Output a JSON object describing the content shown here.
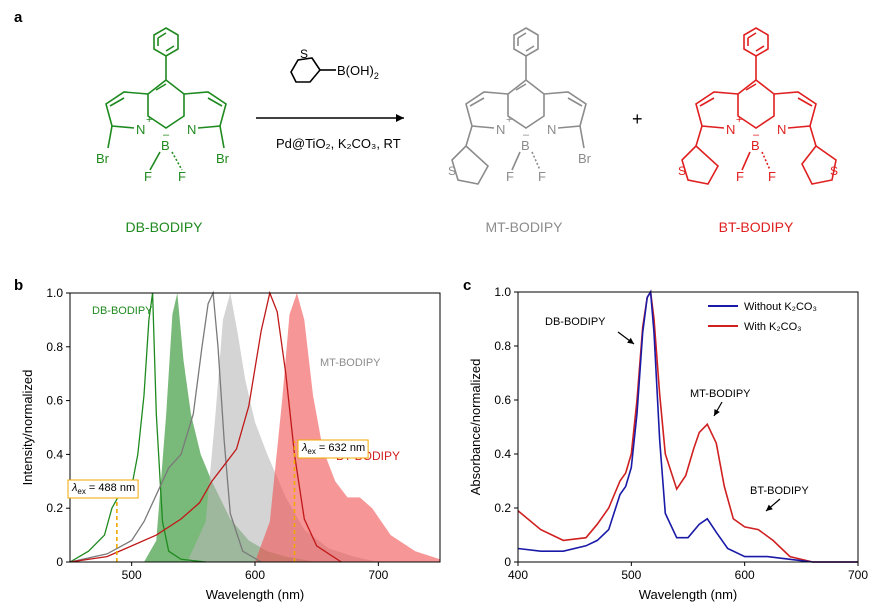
{
  "panel_labels": {
    "a": "a",
    "b": "b",
    "c": "c"
  },
  "scheme": {
    "reagent": "B(OH)",
    "reagent_sub": "2",
    "conditions": "Pd@TiO₂, K₂CO₃, RT",
    "plus": "+",
    "atoms": {
      "N": "N",
      "B": "B",
      "F": "F",
      "Br": "Br",
      "S": "S",
      "plus_charge": "+",
      "minus_charge": "–"
    },
    "compounds": [
      {
        "name": "DB-BODIPY",
        "color": "#1f8a1f"
      },
      {
        "name": "MT-BODIPY",
        "color": "#8c8c8c"
      },
      {
        "name": "BT-BODIPY",
        "color": "#e02020"
      }
    ]
  },
  "chart_data": [
    {
      "type": "line",
      "panel": "b",
      "xlabel": "Wavelength (nm)",
      "ylabel": "Intensity/normalized",
      "xlim": [
        450,
        750
      ],
      "ylim": [
        0,
        1.0
      ],
      "xticks": [
        500,
        600,
        700
      ],
      "yticks": [
        "0",
        "0.2",
        "0.4",
        "0.6",
        "0.8",
        "1.0"
      ],
      "series": [
        {
          "name": "DB-BODIPY",
          "kind": "absorption",
          "color": "#1f8a1f",
          "x": [
            450,
            465,
            478,
            484,
            490,
            495,
            500,
            505,
            510,
            514,
            517,
            520,
            525,
            530,
            540,
            560
          ],
          "y": [
            0.0,
            0.04,
            0.1,
            0.2,
            0.25,
            0.25,
            0.28,
            0.4,
            0.62,
            0.9,
            1.0,
            0.55,
            0.15,
            0.04,
            0.01,
            0.0
          ]
        },
        {
          "name": "DB-BODIPY",
          "kind": "emission",
          "color": "#1f8a1f",
          "x": [
            510,
            520,
            528,
            533,
            537,
            542,
            548,
            556,
            565,
            580,
            595,
            610,
            625,
            650
          ],
          "y": [
            0.0,
            0.08,
            0.55,
            0.92,
            1.0,
            0.75,
            0.55,
            0.4,
            0.3,
            0.16,
            0.08,
            0.04,
            0.02,
            0.0
          ]
        },
        {
          "name": "MT-BODIPY",
          "kind": "absorption",
          "color": "#7a7a7a",
          "x": [
            450,
            480,
            500,
            510,
            520,
            530,
            540,
            550,
            557,
            562,
            566,
            570,
            575,
            580,
            590,
            605
          ],
          "y": [
            0.0,
            0.03,
            0.08,
            0.15,
            0.25,
            0.35,
            0.4,
            0.55,
            0.8,
            0.96,
            1.0,
            0.8,
            0.45,
            0.18,
            0.04,
            0.0
          ]
        },
        {
          "name": "MT-BODIPY",
          "kind": "emission",
          "color": "#b8b8b8",
          "x": [
            545,
            560,
            568,
            574,
            580,
            586,
            592,
            600,
            610,
            625,
            640,
            660,
            680,
            700
          ],
          "y": [
            0.0,
            0.15,
            0.55,
            0.9,
            1.0,
            0.85,
            0.68,
            0.52,
            0.4,
            0.24,
            0.12,
            0.05,
            0.02,
            0.0
          ]
        },
        {
          "name": "BT-BODIPY",
          "kind": "absorption",
          "color": "#c01818",
          "x": [
            450,
            480,
            500,
            520,
            540,
            555,
            565,
            575,
            585,
            595,
            605,
            612,
            618,
            625,
            632,
            640,
            650,
            670
          ],
          "y": [
            0.0,
            0.02,
            0.06,
            0.1,
            0.16,
            0.22,
            0.3,
            0.36,
            0.42,
            0.58,
            0.86,
            1.0,
            0.93,
            0.7,
            0.4,
            0.16,
            0.06,
            0.0
          ]
        },
        {
          "name": "BT-BODIPY",
          "kind": "emission",
          "color": "#f25050",
          "x": [
            600,
            612,
            622,
            628,
            634,
            640,
            647,
            655,
            665,
            675,
            685,
            695,
            710,
            730,
            750
          ],
          "y": [
            0.0,
            0.15,
            0.6,
            0.92,
            1.0,
            0.9,
            0.62,
            0.42,
            0.3,
            0.24,
            0.24,
            0.2,
            0.1,
            0.04,
            0.01
          ]
        }
      ],
      "annotations": [
        {
          "text": "DB-BODIPY",
          "color": "#1f8a1f"
        },
        {
          "text": "MT-BODIPY",
          "color": "#8c8c8c"
        },
        {
          "text": "BT-BODIPY",
          "color": "#d02020"
        },
        {
          "lambda": "λ",
          "sub": "ex",
          "rest": " = 488 nm",
          "x": 488,
          "y": 0.27
        },
        {
          "lambda": "λ",
          "sub": "ex",
          "rest": " = 632 nm",
          "x": 632,
          "y": 0.45
        }
      ]
    },
    {
      "type": "line",
      "panel": "c",
      "xlabel": "Wavelength (nm)",
      "ylabel": "Absorbance/normalized",
      "xlim": [
        400,
        700
      ],
      "ylim": [
        0,
        1.0
      ],
      "xticks": [
        400,
        500,
        600,
        700
      ],
      "yticks": [
        "0",
        "0.2",
        "0.4",
        "0.6",
        "0.8",
        "1.0"
      ],
      "legend_position": "top-right",
      "series": [
        {
          "name": "Without K₂CO₃",
          "color": "#1a1aa8",
          "x": [
            400,
            420,
            440,
            460,
            470,
            480,
            490,
            495,
            500,
            505,
            510,
            514,
            517,
            520,
            525,
            530,
            540,
            550,
            560,
            567,
            575,
            585,
            600,
            620,
            640,
            660,
            700
          ],
          "y": [
            0.05,
            0.04,
            0.04,
            0.06,
            0.08,
            0.12,
            0.25,
            0.28,
            0.35,
            0.55,
            0.85,
            0.98,
            1.0,
            0.85,
            0.45,
            0.18,
            0.09,
            0.09,
            0.14,
            0.16,
            0.11,
            0.05,
            0.02,
            0.02,
            0.01,
            0.0,
            0.0
          ]
        },
        {
          "name": "With K₂CO₃",
          "color": "#d02020",
          "x": [
            400,
            420,
            440,
            460,
            470,
            480,
            490,
            495,
            500,
            505,
            510,
            514,
            517,
            520,
            525,
            530,
            540,
            548,
            555,
            560,
            567,
            575,
            582,
            590,
            600,
            612,
            625,
            640,
            660,
            680,
            700
          ],
          "y": [
            0.19,
            0.12,
            0.08,
            0.09,
            0.14,
            0.2,
            0.3,
            0.33,
            0.4,
            0.6,
            0.87,
            0.98,
            1.0,
            0.9,
            0.62,
            0.4,
            0.27,
            0.32,
            0.42,
            0.48,
            0.51,
            0.44,
            0.28,
            0.16,
            0.13,
            0.12,
            0.08,
            0.02,
            0.0,
            0.0,
            0.0
          ]
        }
      ],
      "annotations": [
        {
          "text": "DB-BODIPY"
        },
        {
          "text": "MT-BODIPY"
        },
        {
          "text": "BT-BODIPY"
        }
      ]
    }
  ]
}
